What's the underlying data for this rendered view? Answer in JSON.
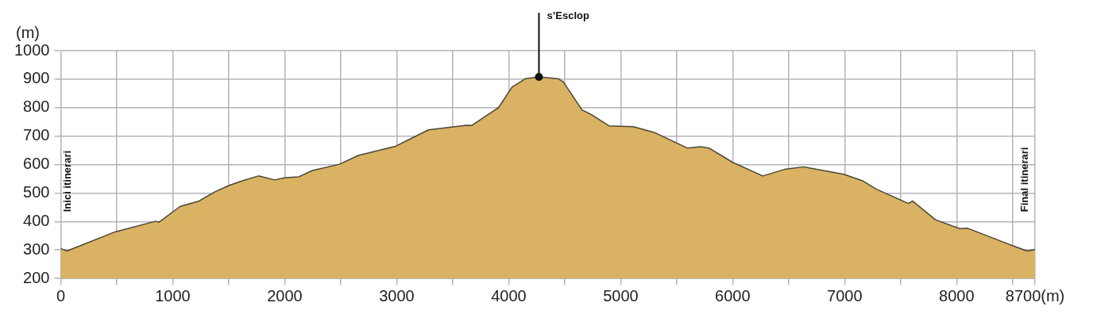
{
  "chart_data": {
    "type": "area",
    "ylabel": "(m)",
    "x": [
      0,
      55,
      489,
      850,
      875,
      1067,
      1235,
      1380,
      1500,
      1621,
      1765,
      1910,
      2006,
      2126,
      2247,
      2488,
      2657,
      2994,
      3283,
      3620,
      3668,
      3861,
      3909,
      4029,
      4150,
      4270,
      4439,
      4487,
      4655,
      4728,
      4896,
      5113,
      5306,
      5595,
      5715,
      5788,
      6004,
      6269,
      6462,
      6631,
      6992,
      7160,
      7281,
      7570,
      7606,
      7811,
      8027,
      8099,
      8485,
      8629,
      8700
    ],
    "series": [
      {
        "color": "#d9b263",
        "values": [
          305,
          296,
          364,
          401,
          397,
          453,
          472,
          505,
          526,
          543,
          560,
          546,
          554,
          557,
          579,
          601,
          632,
          665,
          722,
          738,
          737,
          788,
          800,
          872,
          902,
          908,
          902,
          891,
          792,
          778,
          736,
          733,
          712,
          658,
          663,
          658,
          607,
          560,
          583,
          592,
          566,
          543,
          514,
          463,
          472,
          406,
          375,
          376,
          317,
          296,
          301
        ]
      }
    ],
    "xlim": [
      0,
      8700
    ],
    "ylim": [
      200,
      1000
    ],
    "xticks": [
      0,
      {
        "value": 500,
        "label": null
      },
      1000,
      {
        "value": 1500,
        "label": null
      },
      2000,
      {
        "value": 2500,
        "label": null
      },
      3000,
      {
        "value": 3500,
        "label": null
      },
      4000,
      {
        "value": 4500,
        "label": null
      },
      5000,
      {
        "value": 5500,
        "label": null
      },
      6000,
      {
        "value": 6500,
        "label": null
      },
      7000,
      {
        "value": 7500,
        "label": null
      },
      8000,
      {
        "value": 8500,
        "label": null
      },
      {
        "value": 8700,
        "label": "8700(m)"
      }
    ],
    "yticks": [
      200,
      300,
      400,
      500,
      600,
      700,
      800,
      900,
      1000
    ],
    "grid": true,
    "legend": false,
    "marker": "none",
    "line_style": "solid",
    "annotations": [
      "Inici itinerari",
      {
        "text": "s’Esclop",
        "x": 4270,
        "y": 908
      },
      "Final itinerari"
    ]
  }
}
